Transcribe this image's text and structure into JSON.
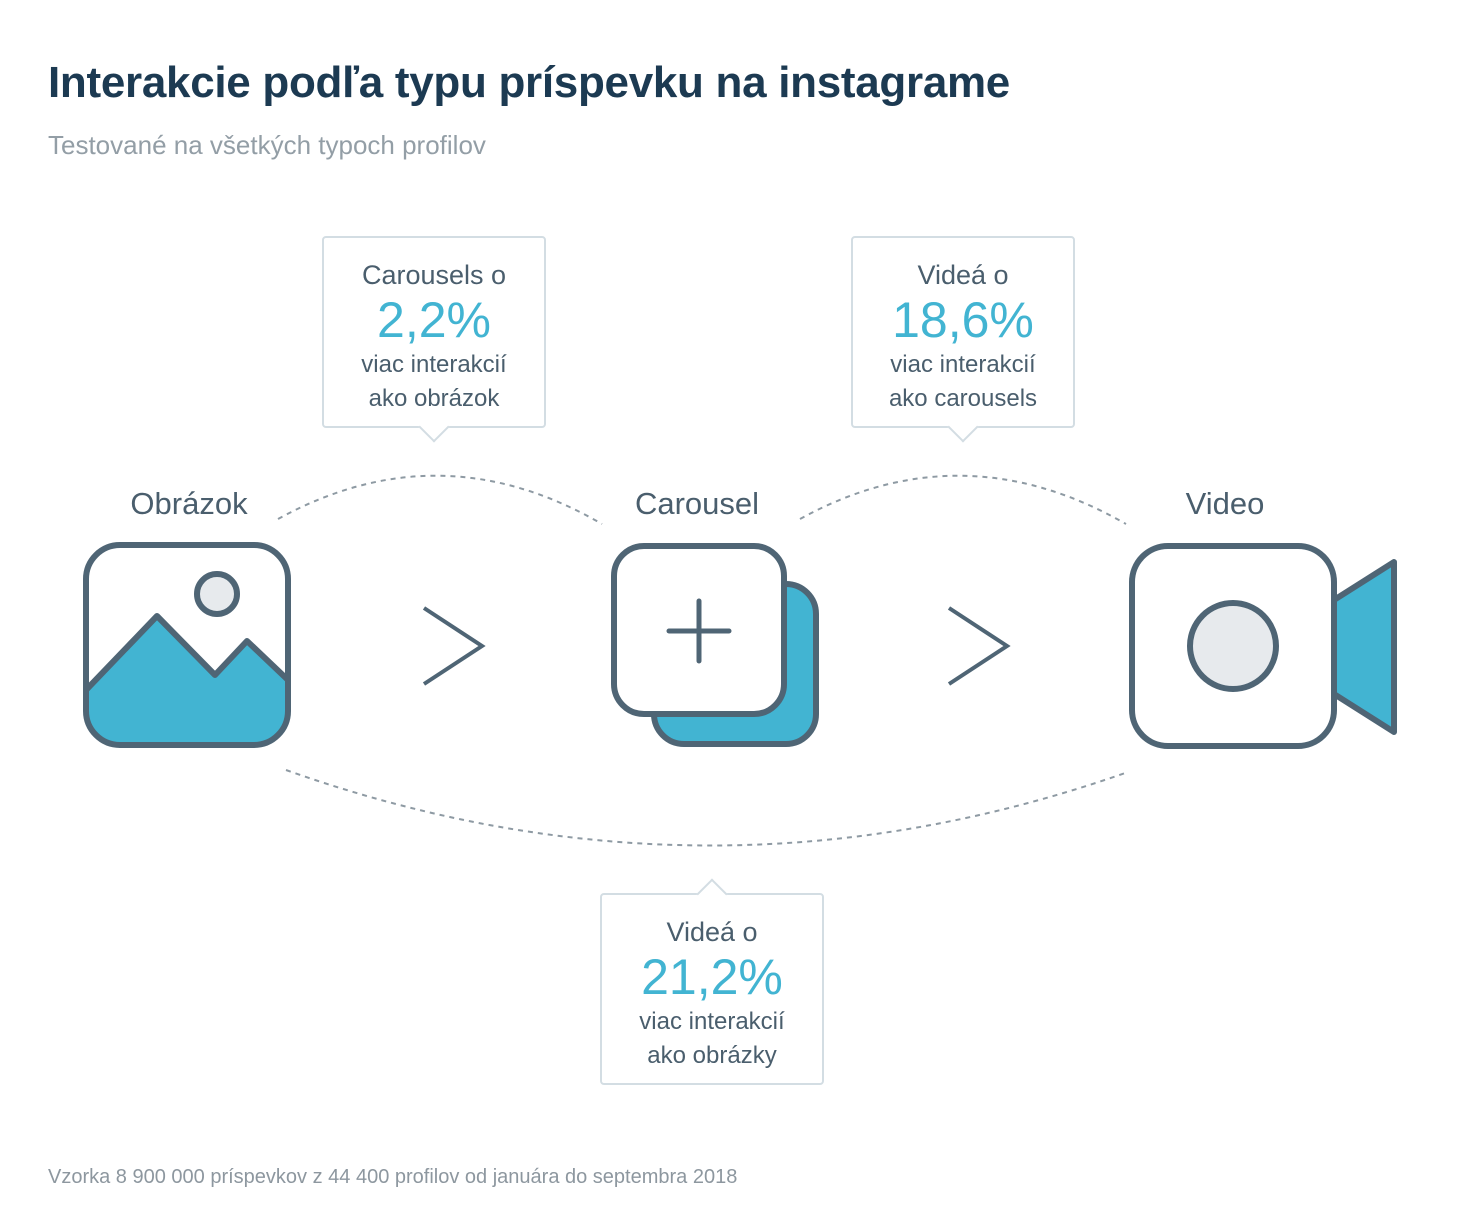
{
  "header": {
    "title": "Interakcie podľa typu príspevku na instagrame",
    "subtitle": "Testované na všetkých typoch profilov"
  },
  "nodes": [
    {
      "label": "Obrázok",
      "icon": "image-icon"
    },
    {
      "label": "Carousel",
      "icon": "carousel-icon"
    },
    {
      "label": "Video",
      "icon": "video-camera-icon"
    }
  ],
  "comparisons": [
    {
      "pre": "Carousels o",
      "value": "2,2%",
      "line1": "viac interakcií",
      "line2": "ako obrázok"
    },
    {
      "pre": "Videá o",
      "value": "18,6%",
      "line1": "viac interakcií",
      "line2": "ako carousels"
    },
    {
      "pre": "Videá o",
      "value": "21,2%",
      "line1": "viac interakcií",
      "line2": "ako obrázky"
    }
  ],
  "footer": {
    "note": "Vzorka 8 900 000 príspevkov z 44 400 profilov od januára do septembra 2018"
  },
  "colors": {
    "title": "#1c3a52",
    "accent": "#42b4d2",
    "stroke": "#4f6575",
    "muted": "#939ea6",
    "icon_fill_light": "#e7eaed",
    "callout_border": "#d3dde3"
  }
}
